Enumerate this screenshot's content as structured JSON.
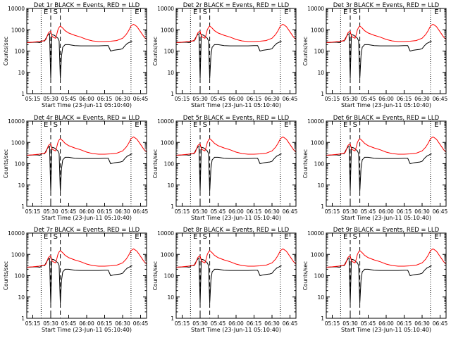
{
  "chart_data": {
    "type": "line",
    "ylabel": "Counts/sec",
    "xlabel": "Start Time (23-Jun-11 05:10:40)",
    "y_scale": "log",
    "ylim": [
      1,
      10000
    ],
    "y_ticks": [
      1,
      10,
      100,
      1000,
      10000
    ],
    "y_tick_labels": [
      "1",
      "10",
      "100",
      "1000",
      "10000"
    ],
    "xlim": [
      "05:10",
      "06:50"
    ],
    "x_ticks": [
      "05:15",
      "05:30",
      "05:45",
      "06:00",
      "06:15",
      "06:30",
      "06:45"
    ],
    "grid": false,
    "dashed_markers_time": [
      "05:30",
      "05:38"
    ],
    "dotted_markers_time": [
      "05:22",
      "06:37"
    ],
    "segment_labels": [
      {
        "text": "E",
        "time": "05:26"
      },
      {
        "text": "S",
        "time": "05:34"
      },
      {
        "text": "E",
        "time": "06:42"
      }
    ],
    "series_colors": {
      "events": "#000000",
      "lld": "#ff0000"
    },
    "panels": [
      {
        "title": "Det 1r BLACK = Events, RED = LLD"
      },
      {
        "title": "Det 2r BLACK = Events, RED = LLD"
      },
      {
        "title": "Det 3r BLACK = Events, RED = LLD"
      },
      {
        "title": "Det 4r BLACK = Events, RED = LLD"
      },
      {
        "title": "Det 5r BLACK = Events, RED = LLD"
      },
      {
        "title": "Det 6r BLACK = Events, RED = LLD"
      },
      {
        "title": "Det 7r BLACK = Events, RED = LLD"
      },
      {
        "title": "Det 8r BLACK = Events, RED = LLD"
      },
      {
        "title": "Det 9r BLACK = Events, RED = LLD"
      }
    ],
    "series": [
      {
        "key": "events",
        "x": [
          "05:10",
          "05:14",
          "05:18",
          "05:21",
          "05:23",
          "05:25",
          "05:26",
          "05:27",
          "05:28",
          "05:29",
          "05:30",
          "05:31",
          "05:33",
          "05:36",
          "05:37",
          "05:38",
          "05:39",
          "05:40",
          "05:42",
          "05:45",
          "05:50",
          "05:55",
          "06:00",
          "06:05",
          "06:10",
          "06:15",
          "06:18",
          "06:20",
          "06:23",
          "06:25",
          "06:28",
          "06:30",
          "06:32",
          "06:34",
          "06:36",
          "06:37",
          "06:38"
        ],
        "values": [
          250,
          255,
          260,
          250,
          300,
          300,
          400,
          500,
          600,
          650,
          5,
          600,
          550,
          400,
          300,
          5,
          60,
          150,
          200,
          200,
          180,
          175,
          175,
          175,
          175,
          180,
          180,
          100,
          110,
          115,
          120,
          130,
          180,
          230,
          260,
          280,
          290
        ]
      },
      {
        "key": "lld",
        "x": [
          "05:10",
          "05:15",
          "05:20",
          "05:22",
          "05:24",
          "05:26",
          "05:27",
          "05:28",
          "05:29",
          "05:30",
          "05:31",
          "05:32",
          "05:33",
          "05:34",
          "05:35",
          "05:36",
          "05:37",
          "05:38",
          "05:40",
          "05:42",
          "05:45",
          "05:50",
          "05:55",
          "06:00",
          "06:05",
          "06:10",
          "06:15",
          "06:20",
          "06:25",
          "06:30",
          "06:33",
          "06:35",
          "06:37",
          "06:39",
          "06:40",
          "06:42",
          "06:45",
          "06:48",
          "06:50"
        ],
        "values": [
          250,
          260,
          280,
          290,
          300,
          350,
          500,
          700,
          800,
          850,
          500,
          450,
          420,
          400,
          600,
          1000,
          1300,
          1500,
          1200,
          900,
          700,
          550,
          450,
          350,
          300,
          280,
          280,
          290,
          310,
          400,
          600,
          900,
          1500,
          1800,
          1700,
          1400,
          800,
          450,
          350
        ]
      }
    ]
  }
}
